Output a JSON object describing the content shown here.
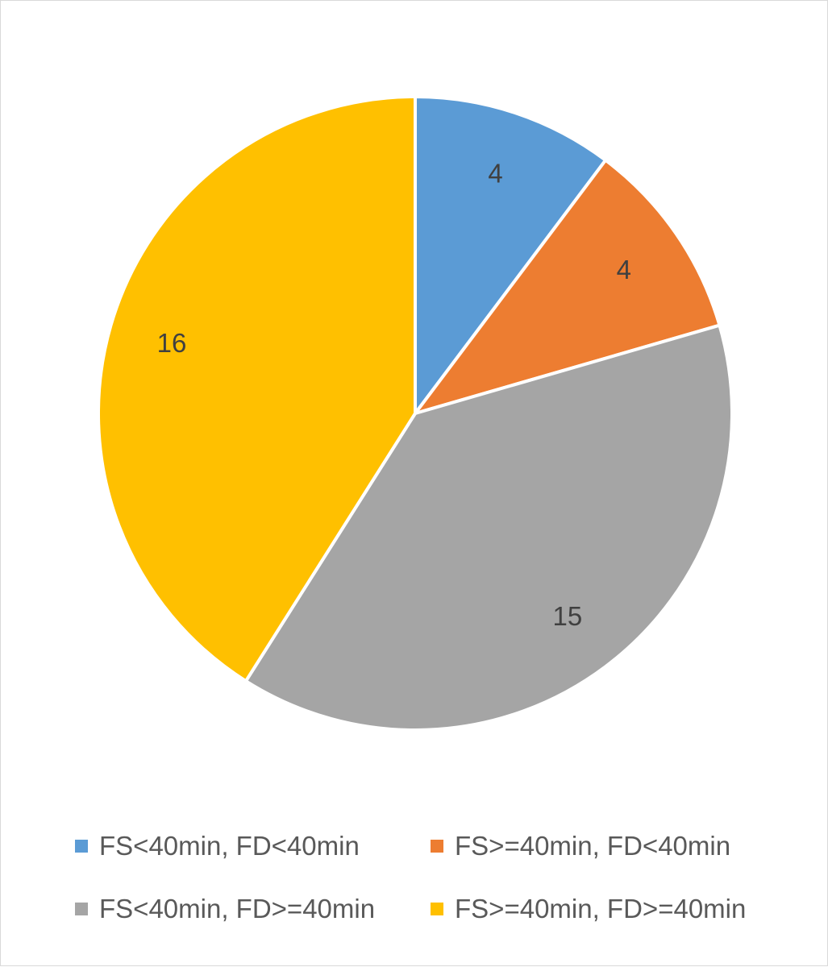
{
  "chart_data": {
    "type": "pie",
    "title": "",
    "categories": [
      "FS<40min, FD<40min",
      "FS>=40min, FD<40min",
      "FS<40min, FD>=40min",
      "FS>=40min, FD>=40min"
    ],
    "values": [
      4,
      4,
      15,
      16
    ],
    "colors": [
      "#5b9bd5",
      "#ed7d31",
      "#a5a5a5",
      "#ffc000"
    ],
    "data_labels": [
      "4",
      "4",
      "15",
      "16"
    ],
    "legend_position": "bottom",
    "start_angle": "12 o'clock, clockwise"
  },
  "legend": {
    "items": [
      {
        "label": "FS<40min, FD<40min",
        "color": "#5b9bd5"
      },
      {
        "label": "FS>=40min, FD<40min",
        "color": "#ed7d31"
      },
      {
        "label": "FS<40min, FD>=40min",
        "color": "#a5a5a5"
      },
      {
        "label": "FS>=40min, FD>=40min",
        "color": "#ffc000"
      }
    ]
  }
}
